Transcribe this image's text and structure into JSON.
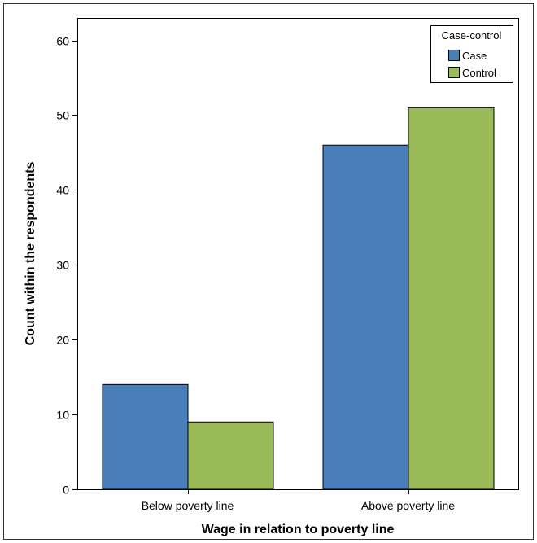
{
  "chart_data": {
    "type": "bar",
    "categories": [
      "Below poverty line",
      "Above poverty line"
    ],
    "series": [
      {
        "name": "Case",
        "values": [
          14,
          46
        ],
        "color": "#4a7ebb"
      },
      {
        "name": "Control",
        "values": [
          9,
          51
        ],
        "color": "#9bbb59"
      }
    ],
    "xlabel": "Wage in relation to poverty line",
    "ylabel": "Count within the respondents",
    "ylim": [
      0,
      63
    ],
    "yticks": [
      0,
      10,
      20,
      30,
      40,
      50,
      60
    ],
    "legend": {
      "title": "Case-control",
      "placement": "top-right"
    },
    "grid": false
  }
}
